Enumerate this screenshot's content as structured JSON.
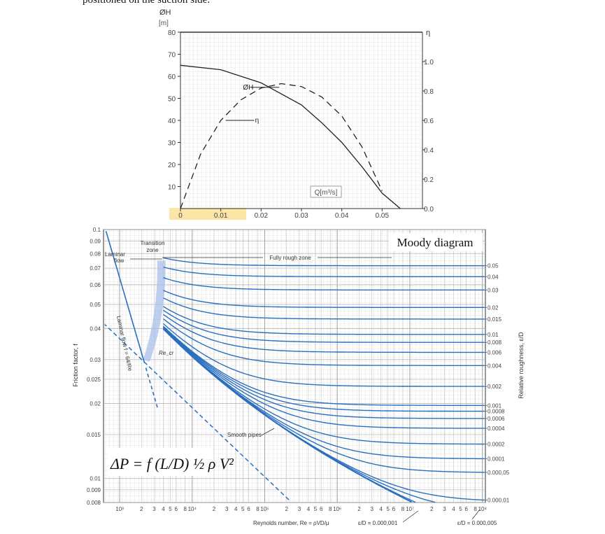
{
  "header_text": "positioned on the suction side.",
  "chart_data": [
    {
      "id": "pump-curve",
      "type": "line",
      "title": "",
      "y_label": "ØH",
      "y_unit": "[m]",
      "x_label": "Q[m³/s]",
      "y2_label": "η",
      "xlim": [
        0,
        0.06
      ],
      "ylim": [
        0,
        80
      ],
      "y2lim": [
        0,
        1.2
      ],
      "x_ticks": [
        "0",
        "0.01",
        "0.02",
        "0.03",
        "0.04",
        "0.05"
      ],
      "x_tick_values": [
        0,
        0.01,
        0.02,
        0.03,
        0.04,
        0.05
      ],
      "y_ticks": [
        "10",
        "20",
        "30",
        "40",
        "50",
        "60",
        "70",
        "80"
      ],
      "y_tick_values": [
        10,
        20,
        30,
        40,
        50,
        60,
        70,
        80
      ],
      "y2_ticks": [
        "0.0",
        "0.2",
        "0.4",
        "0.6",
        "0.8",
        "1.0"
      ],
      "y2_tick_values": [
        0.0,
        0.2,
        0.4,
        0.6,
        0.8,
        1.0
      ],
      "series": [
        {
          "name": "ØH",
          "label": "ØH",
          "style": "solid",
          "x": [
            0,
            0.01,
            0.02,
            0.03,
            0.035,
            0.04,
            0.045,
            0.05,
            0.0545
          ],
          "y": [
            65,
            63,
            57,
            47,
            39,
            30,
            19,
            7,
            0
          ]
        },
        {
          "name": "η",
          "label": "η",
          "style": "dashed",
          "x": [
            0,
            0.005,
            0.01,
            0.015,
            0.02,
            0.025,
            0.03,
            0.035,
            0.04,
            0.045,
            0.05
          ],
          "y2": [
            0.0,
            0.37,
            0.6,
            0.74,
            0.82,
            0.85,
            0.83,
            0.76,
            0.63,
            0.42,
            0.12
          ]
        }
      ]
    },
    {
      "id": "moody-diagram",
      "type": "line",
      "title": "Moody diagram",
      "x_label": "Reynolds number, Re = ρVD/μ",
      "y_label": "Friction factor, f",
      "y2_label": "Relative roughness, ε/D",
      "x_scale": "log",
      "y_scale": "log",
      "xlim": [
        600,
        110000000
      ],
      "ylim": [
        0.008,
        0.1
      ],
      "x_tick_labels": [
        "10³",
        "2",
        "3",
        "4",
        "5",
        "6",
        "8",
        "10⁴",
        "2",
        "3",
        "4",
        "5",
        "6",
        "8",
        "10⁵",
        "2",
        "3",
        "4",
        "5",
        "6",
        "8",
        "10⁶",
        "2",
        "3",
        "4",
        "5",
        "6",
        "8",
        "10⁷",
        "2",
        "3",
        "4",
        "5",
        "6",
        "8",
        "10⁸"
      ],
      "x_tick_values": [
        1000,
        2000,
        3000,
        4000,
        5000,
        6000,
        8000,
        10000,
        20000,
        30000,
        40000,
        50000,
        60000,
        80000,
        100000,
        200000,
        300000,
        400000,
        500000,
        600000,
        800000,
        1000000,
        2000000,
        3000000,
        4000000,
        5000000,
        6000000,
        8000000,
        10000000,
        20000000,
        30000000,
        40000000,
        50000000,
        60000000,
        80000000,
        100000000
      ],
      "y_ticks": [
        "0.1",
        "0.09",
        "0.08",
        "0.07",
        "0.06",
        "0.05",
        "0.04",
        "0.03",
        "0.025",
        "0.02",
        "0.015",
        "0.01",
        "0.009",
        "0.008"
      ],
      "y_tick_values": [
        0.1,
        0.09,
        0.08,
        0.07,
        0.06,
        0.05,
        0.04,
        0.03,
        0.025,
        0.02,
        0.015,
        0.01,
        0.009,
        0.008
      ],
      "roughness_labels": [
        "0.05",
        "0.04",
        "0.03",
        "0.02",
        "0.015",
        "0.01",
        "0.008",
        "0.006",
        "0.004",
        "0.002",
        "0.001",
        "0.0008",
        "0.0006",
        "0.0004",
        "0.0002",
        "0.0001",
        "0.000,05",
        "0.000,01"
      ],
      "roughness_values": [
        0.05,
        0.04,
        0.03,
        0.02,
        0.015,
        0.01,
        0.008,
        0.006,
        0.004,
        0.002,
        0.001,
        0.0008,
        0.0006,
        0.0004,
        0.0002,
        0.0001,
        5e-05,
        1e-05
      ],
      "extra_curves": [
        {
          "label": "ε/D = 0.000,001",
          "value": 1e-06
        },
        {
          "label": "ε/D = 0.000,005",
          "value": 5e-06
        }
      ],
      "series": [
        {
          "name": "Laminar flow f = 64/Re",
          "formula": "f = 64/Re",
          "x_range": [
            600,
            4000
          ]
        },
        {
          "name": "Smooth pipes",
          "formula": "colebrook",
          "roughness": 0
        }
      ],
      "annotations": {
        "laminar_flow": [
          "Laminar",
          "flow"
        ],
        "transition_zone": [
          "Transition",
          "zone"
        ],
        "fully_rough_zone": "Fully rough zone",
        "smooth_pipes": "Smooth pipes",
        "re_cr": "Re_cr",
        "laminar_formula": "Laminar flow f = 64/Re"
      },
      "formula": "ΔP = f (L/D) ½ ρ V²"
    }
  ]
}
